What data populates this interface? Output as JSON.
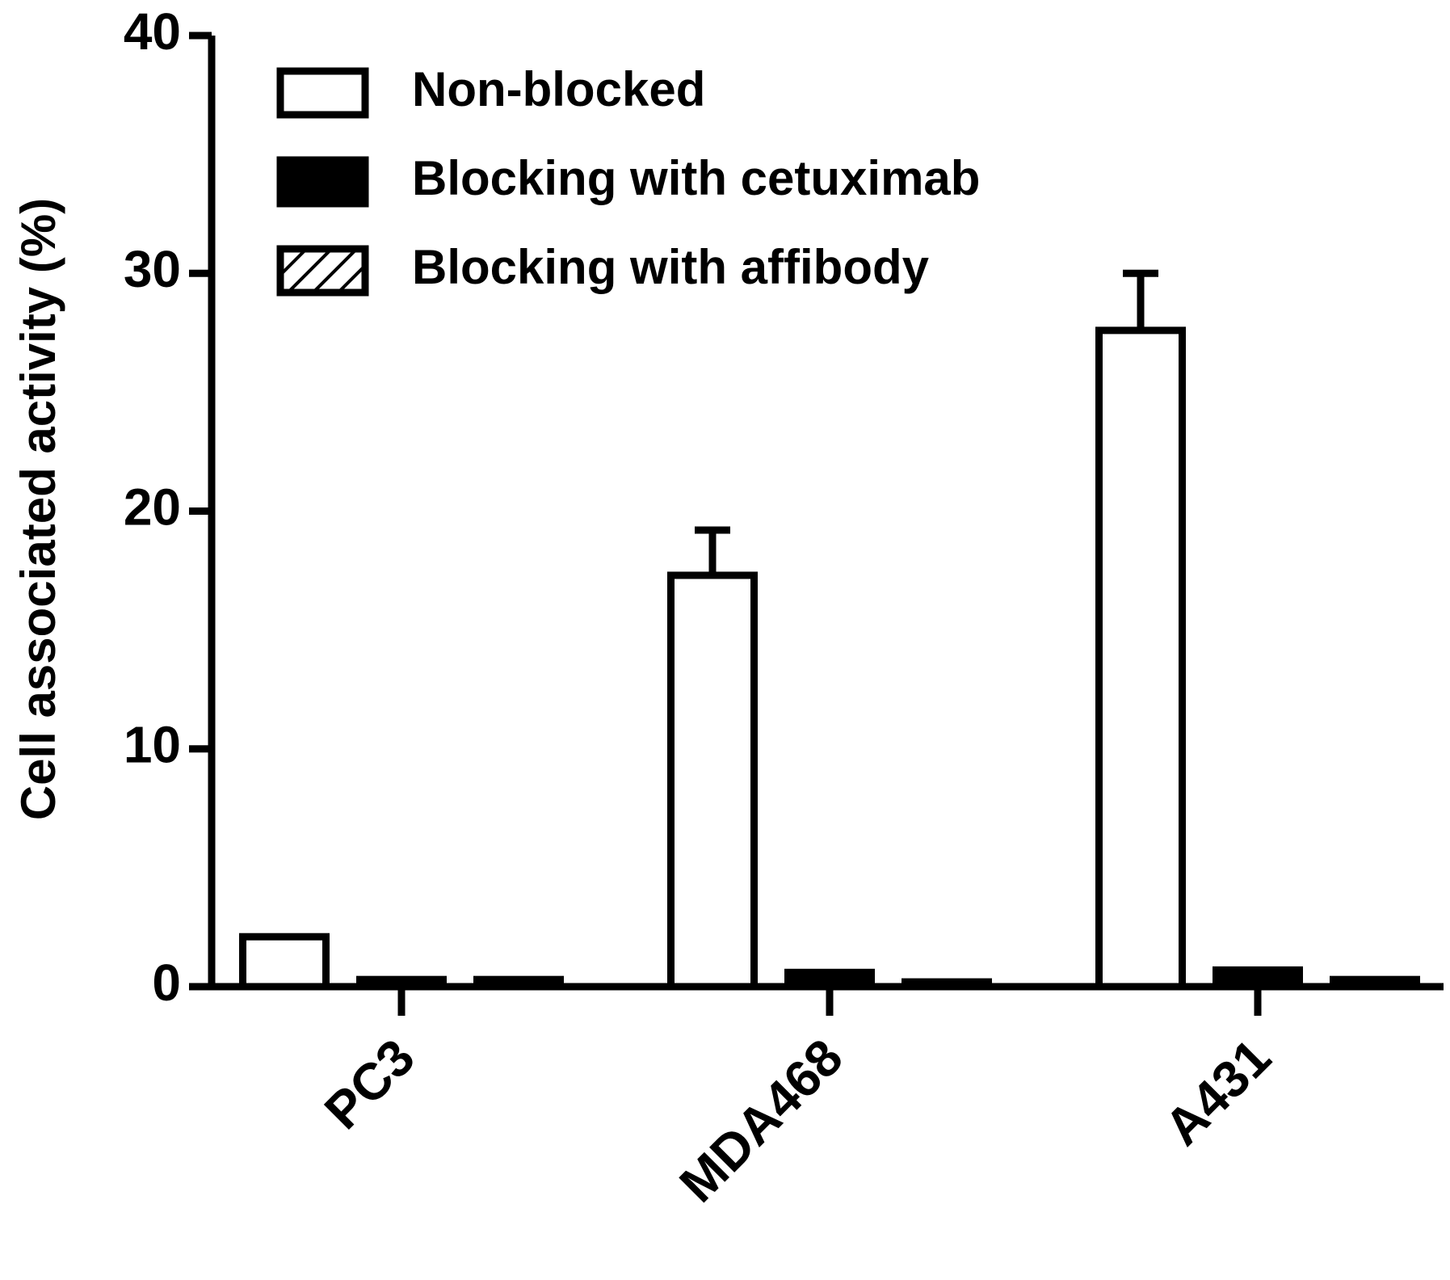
{
  "chart_data": {
    "type": "bar",
    "y_label": "Cell associated activity (%)",
    "categories": [
      "PC3",
      "MDA468",
      "A431"
    ],
    "series": [
      {
        "name": "Non-blocked",
        "color": "#ffffff",
        "values": [
          2.1,
          17.3,
          27.6
        ],
        "errors": [
          null,
          1.9,
          2.4
        ]
      },
      {
        "name": "Blocking with cetuximab",
        "color": "#000000",
        "values": [
          0.3,
          0.6,
          0.7
        ]
      },
      {
        "name": "Blocking with affibody",
        "color": "hatch",
        "values": [
          0.3,
          0.2,
          0.3
        ]
      }
    ],
    "ylim": [
      0,
      40
    ],
    "yticks": [
      0,
      10,
      20,
      30,
      40
    ]
  }
}
